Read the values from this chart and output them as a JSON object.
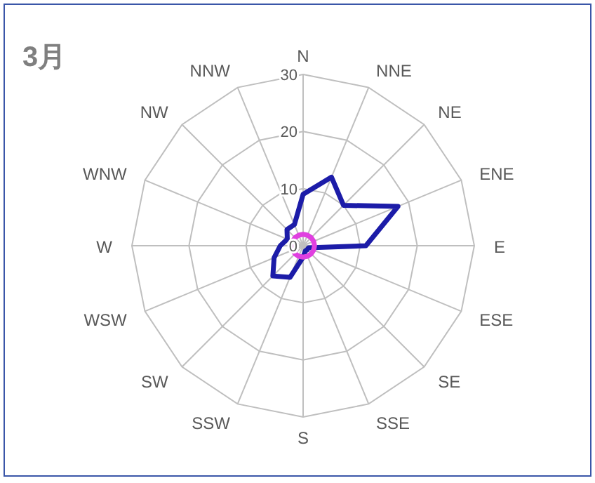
{
  "chart_data": {
    "type": "radar",
    "title": "3月",
    "categories": [
      "N",
      "NNE",
      "NE",
      "ENE",
      "E",
      "ESE",
      "SE",
      "SSE",
      "S",
      "SSW",
      "SW",
      "WSW",
      "W",
      "WNW",
      "NW",
      "NNW"
    ],
    "series": [
      {
        "color": "#1c1ca8",
        "values": [
          9,
          13,
          10,
          18,
          11,
          1,
          1,
          1,
          2,
          6,
          7.5,
          5.5,
          4,
          3,
          4,
          4
        ]
      },
      {
        "color": "#e040e0",
        "values": [
          2,
          2,
          2,
          2,
          2,
          2,
          2,
          2,
          2,
          2,
          2,
          2,
          2,
          2,
          2,
          2
        ]
      }
    ],
    "ylim": [
      0,
      30
    ],
    "yticks": [
      0,
      10,
      20,
      30
    ],
    "grid": true
  }
}
